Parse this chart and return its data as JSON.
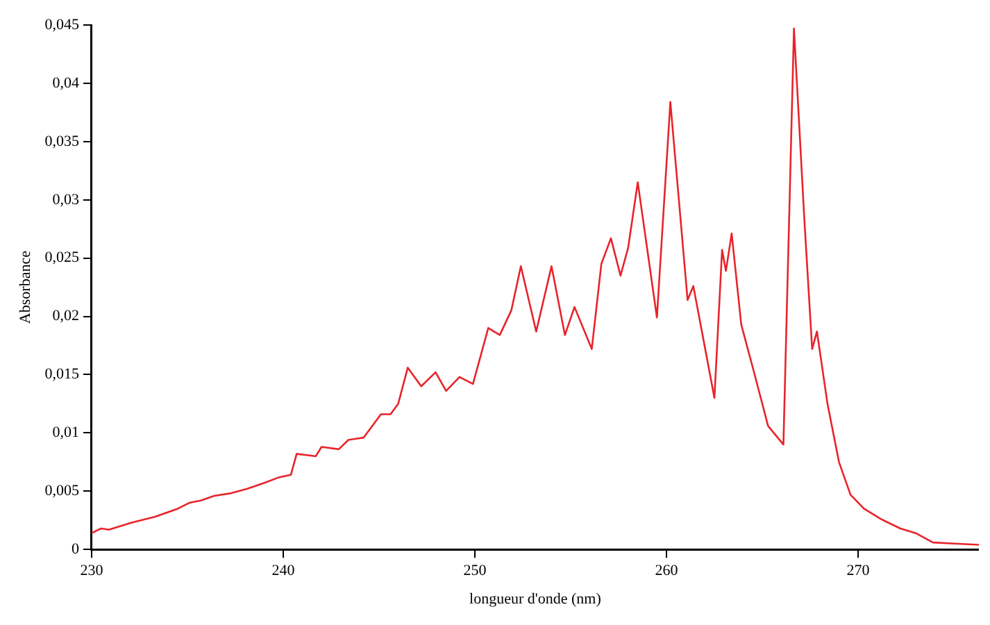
{
  "chart_data": {
    "type": "line",
    "xlabel": "longueur d'onde (nm)",
    "ylabel": "Absorbance",
    "xlim": [
      230,
      276.3
    ],
    "xticks": [
      230,
      240,
      250,
      260,
      270
    ],
    "ylim": [
      0,
      0.045
    ],
    "yticks": [
      {
        "value": 0,
        "label": "0"
      },
      {
        "value": 0.005,
        "label": "0,005"
      },
      {
        "value": 0.01,
        "label": "0,01"
      },
      {
        "value": 0.015,
        "label": "0,015"
      },
      {
        "value": 0.02,
        "label": "0,02"
      },
      {
        "value": 0.025,
        "label": "0,025"
      },
      {
        "value": 0.03,
        "label": "0,03"
      },
      {
        "value": 0.035,
        "label": "0,035"
      },
      {
        "value": 0.04,
        "label": "0,04"
      },
      {
        "value": 0.045,
        "label": "0,045"
      }
    ],
    "grid": false,
    "legend": false,
    "marker": "none",
    "line_style": "solid",
    "series": [
      {
        "color": "#e8232a",
        "x": [
          230,
          230.5,
          230.9,
          232.1,
          233.3,
          234.5,
          235.1,
          235.7,
          236.4,
          237.2,
          238.1,
          239,
          239.8,
          240.4,
          240.7,
          241.2,
          241.7,
          242,
          242.9,
          243.4,
          244.2,
          245.1,
          245.6,
          246,
          246.5,
          247.2,
          247.95,
          248.5,
          249.2,
          249.9,
          250.7,
          251.3,
          251.9,
          252.4,
          253.2,
          254,
          254.7,
          255.2,
          256.1,
          256.6,
          257.1,
          257.6,
          258,
          258.5,
          259.5,
          260.2,
          261.1,
          261.4,
          262.5,
          262.9,
          263.1,
          263.4,
          263.9,
          264.6,
          265.3,
          266.1,
          266.65,
          267.2,
          267.6,
          267.85,
          268.4,
          269,
          269.6,
          270.3,
          271.2,
          272.2,
          273,
          273.9,
          275,
          276.3
        ],
        "values": [
          0.0014,
          0.0018,
          0.0017,
          0.0023,
          0.0028,
          0.0035,
          0.004,
          0.0042,
          0.0046,
          0.0048,
          0.0052,
          0.0057,
          0.0062,
          0.0064,
          0.0082,
          0.0081,
          0.008,
          0.0088,
          0.0086,
          0.0094,
          0.0096,
          0.0116,
          0.0116,
          0.0125,
          0.0156,
          0.014,
          0.0152,
          0.0136,
          0.0148,
          0.0142,
          0.019,
          0.0184,
          0.0205,
          0.0243,
          0.0187,
          0.0243,
          0.0184,
          0.0208,
          0.0172,
          0.0245,
          0.0267,
          0.0235,
          0.0259,
          0.0315,
          0.0199,
          0.0384,
          0.0214,
          0.0226,
          0.013,
          0.0257,
          0.0239,
          0.0271,
          0.0193,
          0.015,
          0.0106,
          0.009,
          0.0447,
          0.0281,
          0.0172,
          0.0187,
          0.0125,
          0.0075,
          0.0047,
          0.0035,
          0.0026,
          0.0018,
          0.0014,
          0.0006,
          0.0005,
          0.0004
        ]
      }
    ]
  }
}
